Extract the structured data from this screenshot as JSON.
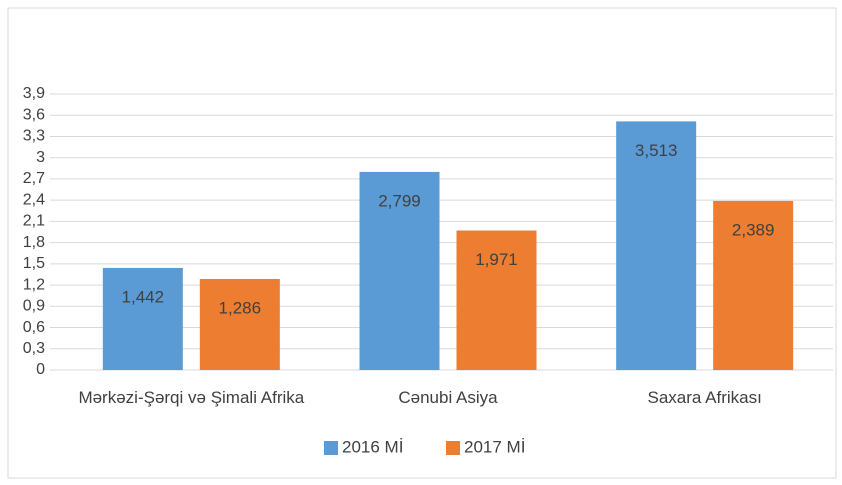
{
  "chart_data": {
    "type": "bar",
    "categories": [
      "Mərkəzi-Şərqi və Şimali Afrika",
      "Cənubi Asiya",
      "Saxara Afrikası"
    ],
    "series": [
      {
        "name": "2016 Mİ",
        "color": "#5b9bd5",
        "values": [
          1.442,
          2.799,
          3.513
        ],
        "value_labels": [
          "1,442",
          "2,799",
          "3,513"
        ]
      },
      {
        "name": "2017 Mİ",
        "color": "#ed7d31",
        "values": [
          1.286,
          1.971,
          2.389
        ],
        "value_labels": [
          "1,286",
          "1,971",
          "2,389"
        ]
      }
    ],
    "ylim": [
      0,
      3.9
    ],
    "yticks": [
      0,
      {
        "value": 0.3,
        "label": "0,3"
      },
      {
        "value": 0.6,
        "label": "0,6"
      },
      {
        "value": 0.9,
        "label": "0,9"
      },
      {
        "value": 1.2,
        "label": "1,2"
      },
      {
        "value": 1.5,
        "label": "1,5"
      },
      {
        "value": 1.8,
        "label": "1,8"
      },
      {
        "value": 2.1,
        "label": "2,1"
      },
      {
        "value": 2.4,
        "label": "2,4"
      },
      {
        "value": 2.7,
        "label": "2,7"
      },
      3,
      {
        "value": 3.3,
        "label": "3,3"
      },
      {
        "value": 3.6,
        "label": "3,6"
      },
      {
        "value": 3.9,
        "label": "3,9"
      }
    ],
    "grid": true,
    "legend": "bottom"
  }
}
